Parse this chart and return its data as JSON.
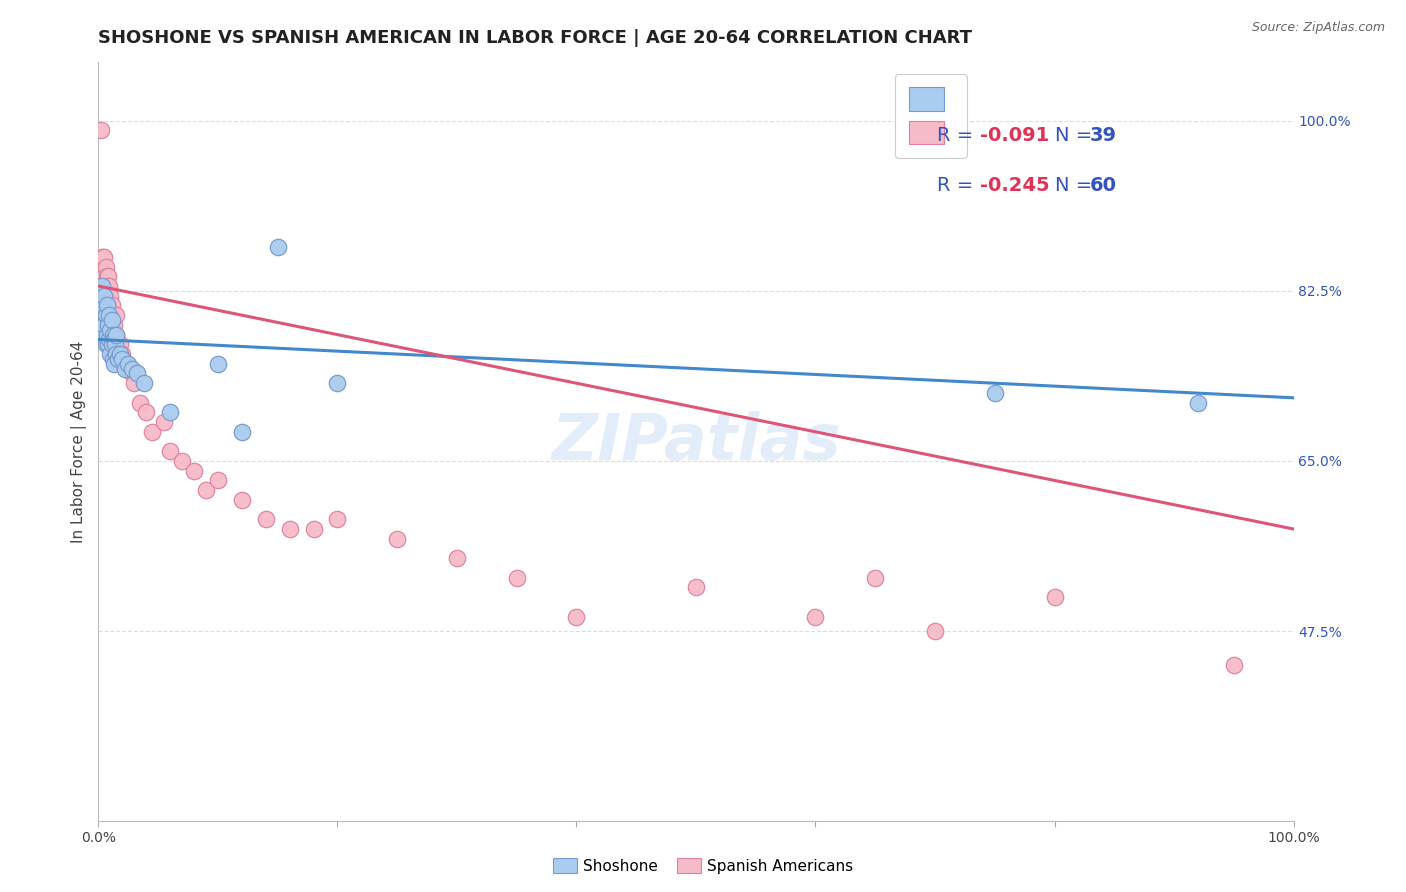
{
  "title": "SHOSHONE VS SPANISH AMERICAN IN LABOR FORCE | AGE 20-64 CORRELATION CHART",
  "source": "Source: ZipAtlas.com",
  "ylabel": "In Labor Force | Age 20-64",
  "xlim": [
    0.0,
    1.0
  ],
  "ylim": [
    0.28,
    1.06
  ],
  "x_ticks": [
    0.0,
    0.2,
    0.4,
    0.6,
    0.8,
    1.0
  ],
  "y_ticks_right": [
    1.0,
    0.825,
    0.65,
    0.475
  ],
  "y_tick_labels_right": [
    "100.0%",
    "82.5%",
    "65.0%",
    "47.5%"
  ],
  "watermark": "ZIPatlas",
  "shoshone_color": "#aaccee",
  "shoshone_edge_color": "#7799cc",
  "spanish_color": "#f5bbc8",
  "spanish_edge_color": "#e080a0",
  "shoshone_line_color": "#4488cc",
  "spanish_line_color": "#dd5577",
  "shoshone_x": [
    0.003,
    0.004,
    0.004,
    0.005,
    0.005,
    0.006,
    0.006,
    0.007,
    0.007,
    0.008,
    0.008,
    0.009,
    0.009,
    0.01,
    0.01,
    0.011,
    0.011,
    0.012,
    0.012,
    0.013,
    0.013,
    0.014,
    0.015,
    0.015,
    0.016,
    0.018,
    0.02,
    0.022,
    0.025,
    0.028,
    0.032,
    0.038,
    0.06,
    0.1,
    0.12,
    0.15,
    0.2,
    0.75,
    0.92
  ],
  "shoshone_y": [
    0.83,
    0.81,
    0.78,
    0.82,
    0.79,
    0.8,
    0.77,
    0.81,
    0.78,
    0.79,
    0.77,
    0.8,
    0.775,
    0.785,
    0.76,
    0.795,
    0.77,
    0.78,
    0.755,
    0.775,
    0.75,
    0.77,
    0.78,
    0.76,
    0.755,
    0.76,
    0.755,
    0.745,
    0.75,
    0.745,
    0.74,
    0.73,
    0.7,
    0.75,
    0.68,
    0.87,
    0.73,
    0.72,
    0.71
  ],
  "spanish_x": [
    0.002,
    0.003,
    0.004,
    0.004,
    0.005,
    0.005,
    0.005,
    0.006,
    0.006,
    0.007,
    0.007,
    0.008,
    0.008,
    0.009,
    0.009,
    0.01,
    0.01,
    0.01,
    0.011,
    0.011,
    0.012,
    0.012,
    0.013,
    0.013,
    0.014,
    0.015,
    0.015,
    0.016,
    0.017,
    0.018,
    0.019,
    0.02,
    0.022,
    0.025,
    0.028,
    0.03,
    0.035,
    0.04,
    0.045,
    0.055,
    0.06,
    0.07,
    0.08,
    0.09,
    0.1,
    0.12,
    0.14,
    0.16,
    0.18,
    0.2,
    0.25,
    0.3,
    0.35,
    0.4,
    0.5,
    0.6,
    0.65,
    0.7,
    0.8,
    0.95
  ],
  "spanish_y": [
    0.99,
    0.86,
    0.84,
    0.82,
    0.86,
    0.84,
    0.82,
    0.85,
    0.83,
    0.84,
    0.82,
    0.84,
    0.81,
    0.83,
    0.805,
    0.82,
    0.8,
    0.78,
    0.81,
    0.79,
    0.8,
    0.78,
    0.79,
    0.77,
    0.78,
    0.8,
    0.78,
    0.77,
    0.76,
    0.77,
    0.755,
    0.76,
    0.75,
    0.745,
    0.74,
    0.73,
    0.71,
    0.7,
    0.68,
    0.69,
    0.66,
    0.65,
    0.64,
    0.62,
    0.63,
    0.61,
    0.59,
    0.58,
    0.58,
    0.59,
    0.57,
    0.55,
    0.53,
    0.49,
    0.52,
    0.49,
    0.53,
    0.475,
    0.51,
    0.44
  ],
  "shoshone_trendline_x": [
    0.0,
    1.0
  ],
  "shoshone_trendline_y": [
    0.775,
    0.715
  ],
  "spanish_trendline_x": [
    0.0,
    1.0
  ],
  "spanish_trendline_y": [
    0.83,
    0.58
  ],
  "background_color": "#ffffff",
  "grid_color": "#dddddd",
  "title_fontsize": 13,
  "axis_label_fontsize": 11,
  "tick_fontsize": 10,
  "legend_fontsize": 14,
  "legend_text_color": "#3355bb",
  "legend_r_color": "#dd3355",
  "legend_n_color": "#3355bb"
}
